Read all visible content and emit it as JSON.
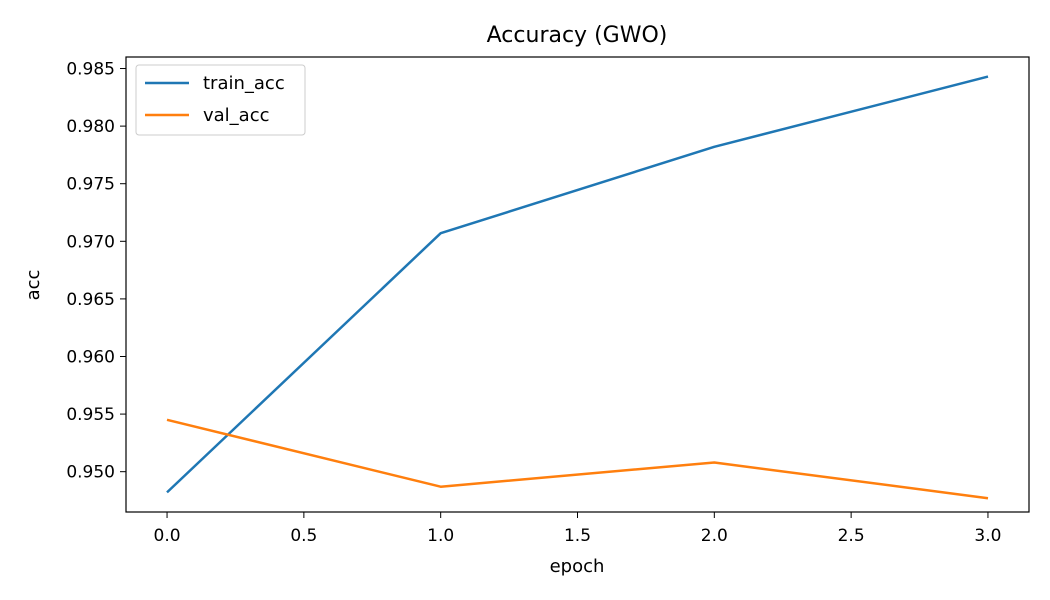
{
  "chart_data": {
    "type": "line",
    "title": "Accuracy (GWO)",
    "xlabel": "epoch",
    "ylabel": "acc",
    "xlim": [
      -0.15,
      3.15
    ],
    "ylim": [
      0.9465,
      0.986
    ],
    "xticks": [
      0.0,
      0.5,
      1.0,
      1.5,
      2.0,
      2.5,
      3.0
    ],
    "xtick_labels": [
      "0.0",
      "0.5",
      "1.0",
      "1.5",
      "2.0",
      "2.5",
      "3.0"
    ],
    "yticks": [
      0.95,
      0.955,
      0.96,
      0.965,
      0.97,
      0.975,
      0.98,
      0.985
    ],
    "ytick_labels": [
      "0.950",
      "0.955",
      "0.960",
      "0.965",
      "0.970",
      "0.975",
      "0.980",
      "0.985"
    ],
    "x": [
      0,
      1,
      2,
      3
    ],
    "series": [
      {
        "name": "train_acc",
        "color": "#1f77b4",
        "values": [
          0.9482,
          0.9707,
          0.9782,
          0.9843
        ]
      },
      {
        "name": "val_acc",
        "color": "#ff7f0e",
        "values": [
          0.9545,
          0.9487,
          0.9508,
          0.9477
        ]
      }
    ],
    "grid": false,
    "legend_position": "top-left"
  }
}
